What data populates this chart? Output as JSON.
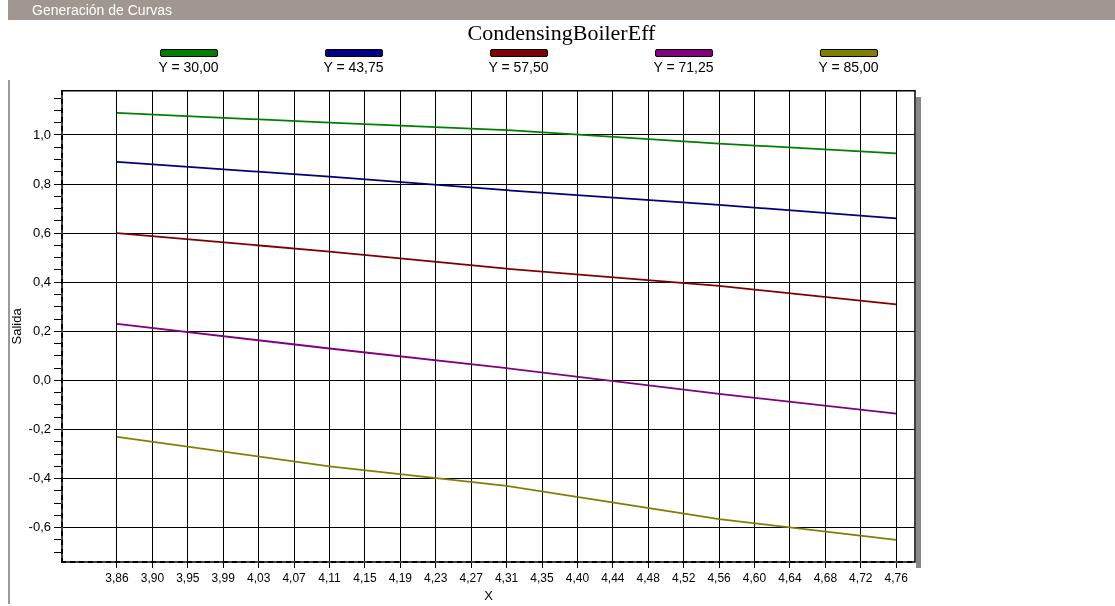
{
  "chart_data": {
    "type": "line",
    "title": "CondensingBoilerEff",
    "xlabel": "X",
    "ylabel": "Salida",
    "annotations": [
      "Generación de Curvas"
    ],
    "x": [
      3.8635,
      4.1089,
      4.3134,
      4.5588,
      4.7633
    ],
    "series": [
      {
        "name": "Y = 30,00",
        "color": "#008000",
        "values": [
          1.09,
          1.05,
          1.02,
          0.965,
          0.925
        ]
      },
      {
        "name": "Y = 43,75",
        "color": "#000080",
        "values": [
          0.89,
          0.83,
          0.775,
          0.715,
          0.66
        ]
      },
      {
        "name": "Y = 57,50",
        "color": "#800000",
        "values": [
          0.6,
          0.525,
          0.455,
          0.385,
          0.31
        ]
      },
      {
        "name": "Y = 71,25",
        "color": "#800080",
        "values": [
          0.23,
          0.13,
          0.05,
          -0.055,
          -0.135
        ]
      },
      {
        "name": "Y = 85,00",
        "color": "#808000",
        "values": [
          -0.23,
          -0.35,
          -0.43,
          -0.565,
          -0.65
        ]
      }
    ],
    "xlim": [
      3.8,
      4.785
    ],
    "xticks": [
      {
        "value": 3.8635,
        "label": "3,86"
      },
      {
        "value": 3.9044,
        "label": "3,90"
      },
      {
        "value": 3.9453,
        "label": "3,95"
      },
      {
        "value": 3.9862,
        "label": "3,99"
      },
      {
        "value": 4.0271,
        "label": "4,03"
      },
      {
        "value": 4.068,
        "label": "4,07"
      },
      {
        "value": 4.1089,
        "label": "4,11"
      },
      {
        "value": 4.1498,
        "label": "4,15"
      },
      {
        "value": 4.1907,
        "label": "4,19"
      },
      {
        "value": 4.2316,
        "label": "4,23"
      },
      {
        "value": 4.2725,
        "label": "4,27"
      },
      {
        "value": 4.3134,
        "label": "4,31"
      },
      {
        "value": 4.3543,
        "label": "4,35"
      },
      {
        "value": 4.3952,
        "label": "4,40"
      },
      {
        "value": 4.4361,
        "label": "4,44"
      },
      {
        "value": 4.477,
        "label": "4,48"
      },
      {
        "value": 4.5179,
        "label": "4,52"
      },
      {
        "value": 4.5588,
        "label": "4,56"
      },
      {
        "value": 4.5997,
        "label": "4,60"
      },
      {
        "value": 4.6406,
        "label": "4,64"
      },
      {
        "value": 4.6815,
        "label": "4,68"
      },
      {
        "value": 4.7224,
        "label": "4,72"
      },
      {
        "value": 4.7633,
        "label": "4,76"
      }
    ],
    "ylim": [
      -0.74,
      1.18
    ],
    "yticks": [
      {
        "value": -0.7,
        "label": null
      },
      {
        "value": -0.65,
        "label": null
      },
      {
        "value": -0.6,
        "label": "-0,6"
      },
      {
        "value": -0.55,
        "label": null
      },
      {
        "value": -0.5,
        "label": null
      },
      {
        "value": -0.45,
        "label": null
      },
      {
        "value": -0.4,
        "label": "-0,4"
      },
      {
        "value": -0.35,
        "label": null
      },
      {
        "value": -0.3,
        "label": null
      },
      {
        "value": -0.25,
        "label": null
      },
      {
        "value": -0.2,
        "label": "-0,2"
      },
      {
        "value": -0.15,
        "label": null
      },
      {
        "value": -0.1,
        "label": null
      },
      {
        "value": -0.05,
        "label": null
      },
      {
        "value": 0,
        "label": "0,0"
      },
      {
        "value": 0.05,
        "label": null
      },
      {
        "value": 0.1,
        "label": null
      },
      {
        "value": 0.15,
        "label": null
      },
      {
        "value": 0.2,
        "label": "0,2"
      },
      {
        "value": 0.25,
        "label": null
      },
      {
        "value": 0.3,
        "label": null
      },
      {
        "value": 0.35,
        "label": null
      },
      {
        "value": 0.4,
        "label": "0,4"
      },
      {
        "value": 0.45,
        "label": null
      },
      {
        "value": 0.5,
        "label": null
      },
      {
        "value": 0.55,
        "label": null
      },
      {
        "value": 0.6,
        "label": "0,6"
      },
      {
        "value": 0.65,
        "label": null
      },
      {
        "value": 0.7,
        "label": null
      },
      {
        "value": 0.75,
        "label": null
      },
      {
        "value": 0.8,
        "label": "0,8"
      },
      {
        "value": 0.85,
        "label": null
      },
      {
        "value": 0.9,
        "label": null
      },
      {
        "value": 0.95,
        "label": null
      },
      {
        "value": 1,
        "label": "1,0"
      },
      {
        "value": 1.05,
        "label": null
      },
      {
        "value": 1.1,
        "label": null
      },
      {
        "value": 1.15,
        "label": null
      }
    ],
    "grid": true,
    "legend": "top",
    "marker": "none",
    "line_style": "solid"
  }
}
